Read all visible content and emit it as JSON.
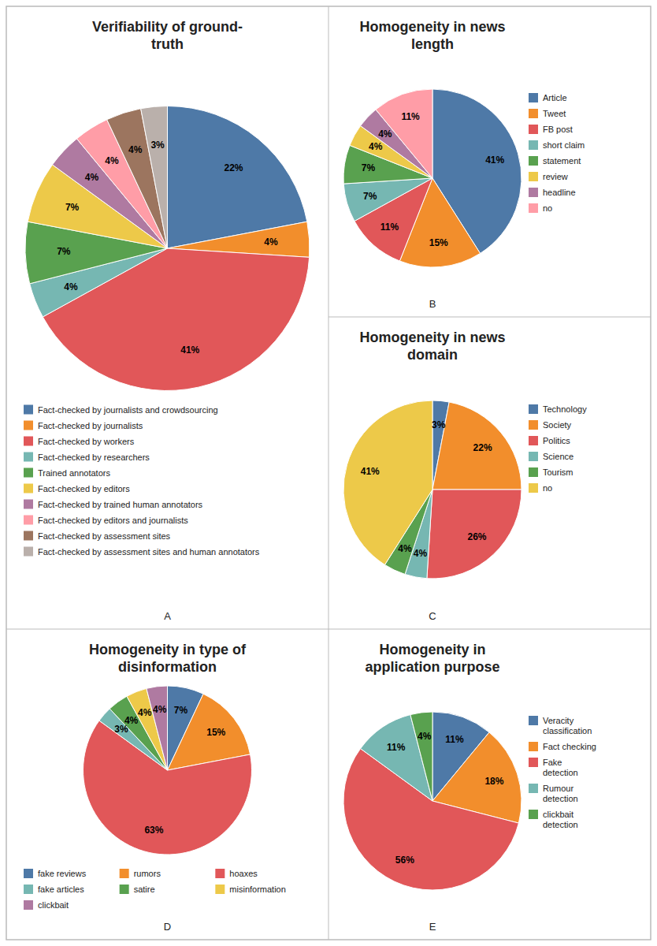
{
  "chart_data": [
    {
      "type": "pie",
      "title": "Verifiability of ground-\ntruth",
      "categories": [
        "Fact-checked by journalists and crowdsourcing",
        "Fact-checked by journalists",
        "Fact-checked by workers",
        "Fact-checked by researchers",
        "Trained annotators",
        "Fact-checked by editors",
        "Fact-checked by trained human annotators",
        "Fact-checked by editors and journalists",
        "Fact-checked by assessment sites",
        "Fact-checked by assessment sites and human annotators"
      ],
      "values": [
        22,
        4,
        41,
        4,
        7,
        7,
        4,
        4,
        4,
        3
      ],
      "value_labels": [
        "22%",
        "4%",
        "41%",
        "4%",
        "7%",
        "7%",
        "4%",
        "4%",
        "4%",
        "3%"
      ],
      "data_labels": true,
      "legend": "bottom",
      "annotations": [
        "A"
      ]
    },
    {
      "type": "pie",
      "title": "Homogeneity in news\nlength",
      "categories": [
        "Article",
        "Tweet",
        "FB post",
        "short claim",
        "statement",
        "review",
        "headline",
        "no"
      ],
      "values": [
        41,
        15,
        11,
        7,
        7,
        4,
        4,
        11
      ],
      "value_labels": [
        "41%",
        "15%",
        "11%",
        "7%",
        "7%",
        "4%",
        "4%",
        "11%"
      ],
      "data_labels": true,
      "legend": "right",
      "annotations": [
        "B"
      ]
    },
    {
      "type": "pie",
      "title": "Homogeneity in news\ndomain",
      "categories": [
        "Technology",
        "Society",
        "Politics",
        "Science",
        "Tourism",
        "no"
      ],
      "values": [
        3,
        22,
        26,
        4,
        4,
        41
      ],
      "value_labels": [
        "3%",
        "22%",
        "26%",
        "4%",
        "4%",
        "41%"
      ],
      "data_labels": true,
      "legend": "right",
      "annotations": [
        "C"
      ]
    },
    {
      "type": "pie",
      "title": "Homogeneity in type of\ndisinformation",
      "categories": [
        "fake reviews",
        "rumors",
        "hoaxes",
        "fake articles",
        "satire",
        "misinformation",
        "clickbait"
      ],
      "values": [
        7,
        15,
        63,
        3,
        4,
        4,
        4
      ],
      "value_labels": [
        "7%",
        "15%",
        "63%",
        "3%",
        "4%",
        "4%",
        "4%"
      ],
      "data_labels": true,
      "legend": "bottom",
      "annotations": [
        "D"
      ]
    },
    {
      "type": "pie",
      "title": "Homogeneity in\napplication purpose",
      "categories": [
        "Veracity\nclassification",
        "Fact checking",
        "Fake\ndetection",
        "Rumour\ndetection",
        "clickbait\ndetection"
      ],
      "values": [
        11,
        18,
        56,
        11,
        4
      ],
      "value_labels": [
        "11%",
        "18%",
        "56%",
        "11%",
        "4%"
      ],
      "data_labels": true,
      "legend": "right",
      "annotations": [
        "E"
      ]
    }
  ]
}
